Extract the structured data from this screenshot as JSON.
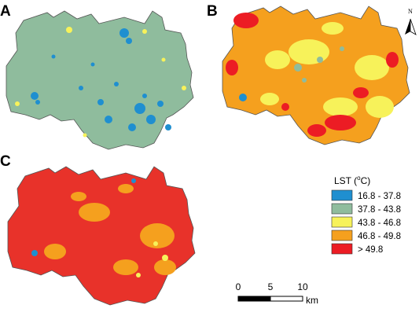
{
  "panels": [
    {
      "label": "A",
      "base_color": "#8fbc9d"
    },
    {
      "label": "B",
      "base_color": "#f5a01e"
    },
    {
      "label": "C",
      "base_color": "#e8322a"
    }
  ],
  "legend": {
    "title_main": "LST (",
    "title_sup": "o",
    "title_end": "C)",
    "items": [
      {
        "label": "16.8 - 37.8",
        "color": "#1f8fd0"
      },
      {
        "label": "37.8 - 43.8",
        "color": "#8fbc9d"
      },
      {
        "label": "43.8 - 46.8",
        "color": "#f7f25a"
      },
      {
        "label": "46.8 - 49.8",
        "color": "#f5a01e"
      },
      {
        "label": "> 49.8",
        "color": "#ec1c24"
      }
    ]
  },
  "scale_bar": {
    "ticks": [
      "0",
      "5",
      "10"
    ],
    "unit": "km"
  },
  "north_arrow": {
    "label": "N"
  }
}
